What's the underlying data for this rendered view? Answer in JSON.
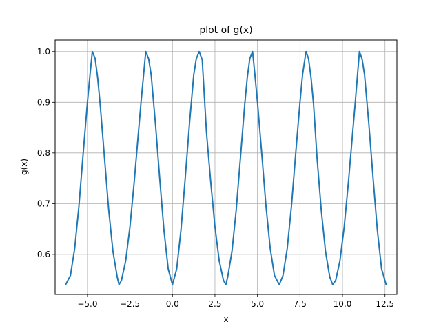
{
  "chart_data": {
    "type": "line",
    "title": "plot of g(x)",
    "xlabel": "x",
    "ylabel": "g(x)",
    "xlim": [
      -6.9,
      13.2
    ],
    "ylim": [
      0.521,
      1.0228
    ],
    "grid": true,
    "x_ticks": [
      -5.0,
      -2.5,
      0.0,
      2.5,
      5.0,
      7.5,
      10.0,
      12.5
    ],
    "x_tick_labels": [
      "−5.0",
      "−2.5",
      "0.0",
      "2.5",
      "5.0",
      "7.5",
      "10.0",
      "12.5"
    ],
    "y_ticks": [
      0.6,
      0.7,
      0.8,
      0.9,
      1.0
    ],
    "y_tick_labels": [
      "0.6",
      "0.7",
      "0.8",
      "0.9",
      "1.0"
    ],
    "series": [
      {
        "color": "#1f77b4",
        "x_range": [
          -6.2832,
          12.5664
        ],
        "points": [
          [
            -6.2832,
            0.5403
          ],
          [
            -6.0,
            0.5583
          ],
          [
            -5.75,
            0.6116
          ],
          [
            -5.5,
            0.6955
          ],
          [
            -5.25,
            0.7996
          ],
          [
            -5.0,
            0.9003
          ],
          [
            -4.85,
            0.954
          ],
          [
            -4.7124,
            1.0
          ],
          [
            -4.55,
            0.9866
          ],
          [
            -4.4,
            0.9487
          ],
          [
            -4.25,
            0.8955
          ],
          [
            -4.0,
            0.7917
          ],
          [
            -3.75,
            0.6878
          ],
          [
            -3.5,
            0.6061
          ],
          [
            -3.25,
            0.5556
          ],
          [
            -3.1416,
            0.5403
          ],
          [
            -3.0,
            0.5487
          ],
          [
            -2.75,
            0.5874
          ],
          [
            -2.5,
            0.6543
          ],
          [
            -2.25,
            0.7429
          ],
          [
            -2.0,
            0.8413
          ],
          [
            -1.85,
            0.8995
          ],
          [
            -1.5708,
            1.0
          ],
          [
            -1.4,
            0.9858
          ],
          [
            -1.25,
            0.9535
          ],
          [
            -1.0,
            0.8576
          ],
          [
            -0.75,
            0.7499
          ],
          [
            -0.5,
            0.6478
          ],
          [
            -0.25,
            0.5714
          ],
          [
            0.0,
            0.5403
          ],
          [
            0.25,
            0.5714
          ],
          [
            0.5,
            0.6478
          ],
          [
            0.75,
            0.7499
          ],
          [
            1.0,
            0.8576
          ],
          [
            1.25,
            0.9535
          ],
          [
            1.4,
            0.9858
          ],
          [
            1.5708,
            1.0
          ],
          [
            1.75,
            0.9839
          ],
          [
            2.0,
            0.8413
          ],
          [
            2.25,
            0.7429
          ],
          [
            2.5,
            0.6543
          ],
          [
            2.75,
            0.5874
          ],
          [
            3.0,
            0.5487
          ],
          [
            3.1416,
            0.5403
          ],
          [
            3.25,
            0.5556
          ],
          [
            3.5,
            0.6061
          ],
          [
            3.75,
            0.6878
          ],
          [
            4.0,
            0.7917
          ],
          [
            4.25,
            0.8955
          ],
          [
            4.4,
            0.9487
          ],
          [
            4.55,
            0.9866
          ],
          [
            4.7124,
            1.0
          ],
          [
            4.85,
            0.954
          ],
          [
            5.0,
            0.9003
          ],
          [
            5.25,
            0.7996
          ],
          [
            5.5,
            0.6955
          ],
          [
            5.75,
            0.6116
          ],
          [
            6.0,
            0.5583
          ],
          [
            6.2832,
            0.5403
          ],
          [
            6.5,
            0.5583
          ],
          [
            6.75,
            0.6116
          ],
          [
            7.0,
            0.6955
          ],
          [
            7.25,
            0.7996
          ],
          [
            7.5,
            0.9003
          ],
          [
            7.65,
            0.954
          ],
          [
            7.854,
            1.0
          ],
          [
            8.0,
            0.9866
          ],
          [
            8.15,
            0.9487
          ],
          [
            8.3,
            0.8955
          ],
          [
            8.5,
            0.7917
          ],
          [
            8.75,
            0.6878
          ],
          [
            9.0,
            0.6061
          ],
          [
            9.25,
            0.5556
          ],
          [
            9.4248,
            0.5403
          ],
          [
            9.6,
            0.5487
          ],
          [
            9.85,
            0.5874
          ],
          [
            10.1,
            0.6543
          ],
          [
            10.35,
            0.7429
          ],
          [
            10.6,
            0.8413
          ],
          [
            10.75,
            0.8995
          ],
          [
            10.9956,
            1.0
          ],
          [
            11.15,
            0.9858
          ],
          [
            11.3,
            0.9535
          ],
          [
            11.55,
            0.8576
          ],
          [
            11.8,
            0.7499
          ],
          [
            12.05,
            0.6478
          ],
          [
            12.3,
            0.5714
          ],
          [
            12.5664,
            0.5403
          ]
        ]
      }
    ]
  }
}
